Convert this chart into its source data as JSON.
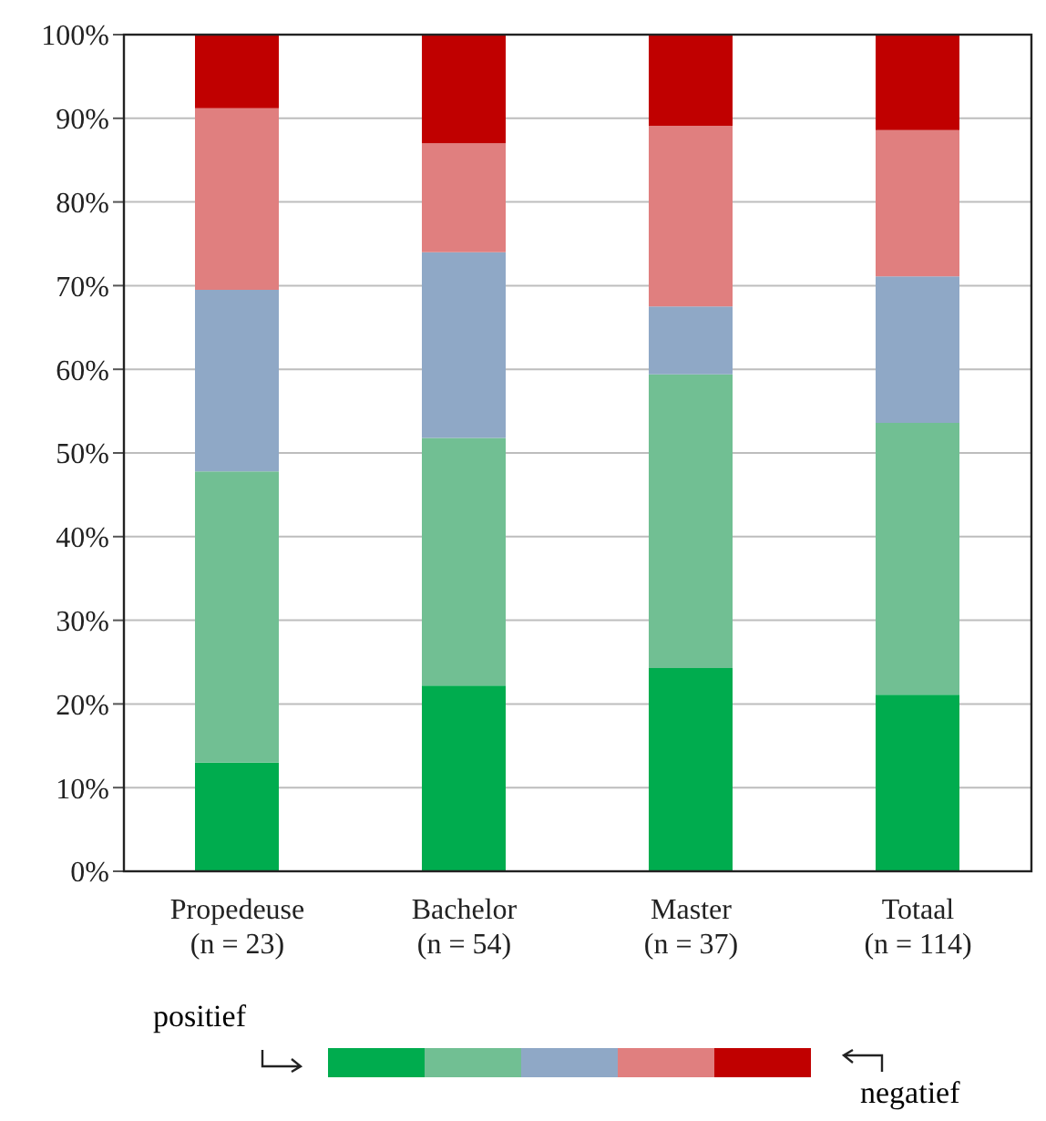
{
  "chart_data": {
    "type": "bar",
    "stacked": true,
    "categories": [
      "Propedeuse\n(n = 23)",
      "Bachelor\n(n = 54)",
      "Master\n(n = 37)",
      "Totaal\n(n = 114)"
    ],
    "series": [
      {
        "color": "#00ac4e",
        "values": [
          13.0,
          22.2,
          24.3,
          21.1
        ]
      },
      {
        "color": "#71bf93",
        "values": [
          34.8,
          29.6,
          35.1,
          32.5
        ]
      },
      {
        "color": "#8fa8c6",
        "values": [
          21.7,
          22.2,
          8.1,
          17.5
        ]
      },
      {
        "color": "#e07f7f",
        "values": [
          21.7,
          13.0,
          21.6,
          17.5
        ]
      },
      {
        "color": "#c00000",
        "values": [
          8.8,
          13.0,
          10.9,
          11.4
        ]
      }
    ],
    "ylim": [
      0,
      100
    ],
    "yticks": [
      {
        "value": 0,
        "label": "0%"
      },
      {
        "value": 10,
        "label": "10%"
      },
      {
        "value": 20,
        "label": "20%"
      },
      {
        "value": 30,
        "label": "30%"
      },
      {
        "value": 40,
        "label": "40%"
      },
      {
        "value": 50,
        "label": "50%"
      },
      {
        "value": 60,
        "label": "60%"
      },
      {
        "value": 70,
        "label": "70%"
      },
      {
        "value": 80,
        "label": "80%"
      },
      {
        "value": 90,
        "label": "90%"
      },
      {
        "value": 100,
        "label": "100%"
      }
    ],
    "grid": "y",
    "annotations": [
      "positief",
      "negatief"
    ]
  }
}
